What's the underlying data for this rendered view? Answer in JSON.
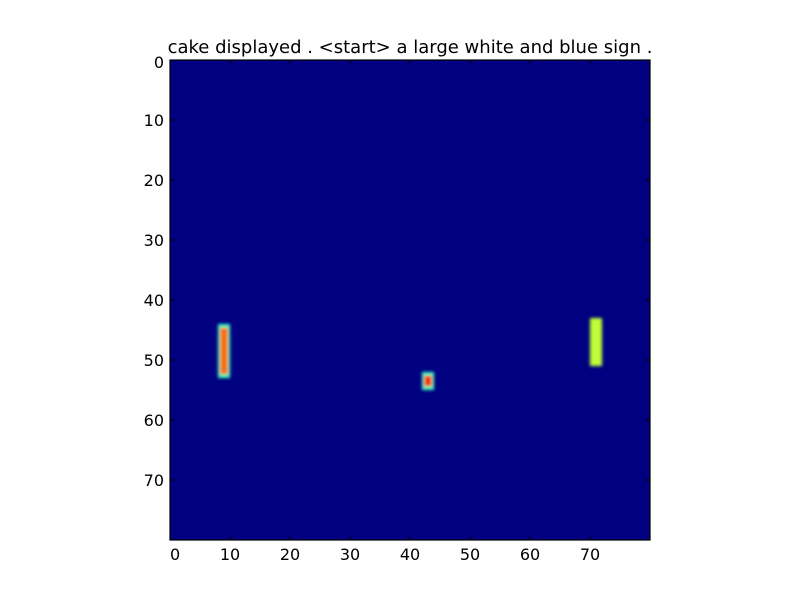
{
  "chart_data": {
    "type": "heatmap",
    "title": "cake displayed . <start> a large white and blue sign .",
    "xlabel": "",
    "ylabel": "",
    "grid_size": [
      80,
      80
    ],
    "xlim": [
      0,
      80
    ],
    "ylim": [
      80,
      0
    ],
    "x_ticks": [
      "0",
      "10",
      "20",
      "30",
      "40",
      "50",
      "60",
      "70"
    ],
    "y_ticks": [
      "0",
      "10",
      "20",
      "30",
      "40",
      "50",
      "60",
      "70"
    ],
    "colormap": "jet",
    "background_value": 0,
    "background_color": "#000080",
    "blobs": [
      {
        "x_range": [
          8,
          9
        ],
        "y_range": [
          44,
          52
        ],
        "peak": 0.82,
        "edge_color": "#37ffc0",
        "core_color": "#ff6a00"
      },
      {
        "x_range": [
          42,
          43
        ],
        "y_range": [
          52,
          54
        ],
        "peak": 0.9,
        "edge_color": "#37ffc0",
        "core_color": "#ff2a00"
      },
      {
        "x_range": [
          70,
          71
        ],
        "y_range": [
          43,
          50
        ],
        "peak": 0.62,
        "edge_color": "#c0ff37",
        "core_color": "#c0ff37"
      }
    ]
  }
}
